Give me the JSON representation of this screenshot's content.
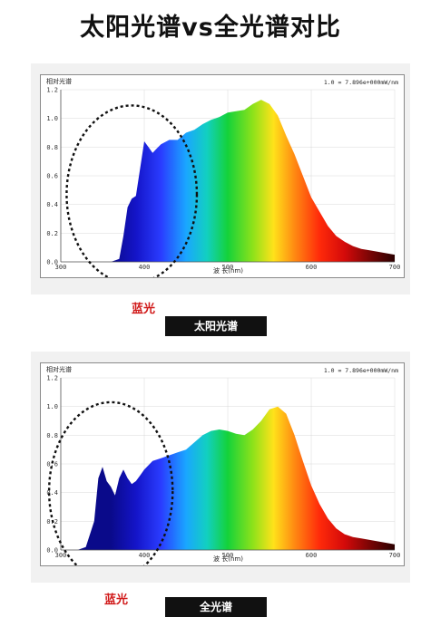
{
  "title": "太阳光谱vs全光谱对比",
  "colors": {
    "highlight_text": "#d01818",
    "caption_bg": "#111111",
    "circle": "#111111"
  },
  "chart_data": [
    {
      "type": "area",
      "caption": "太阳光谱",
      "callout": "蓝光",
      "ylabel": "相对光谱",
      "xlabel": "波 长(nm)",
      "scale_note": "1.0 = 7.896e+000mW/nm",
      "xlim": [
        300,
        700
      ],
      "ylim": [
        0,
        1.2
      ],
      "x_ticks": [
        "300",
        "400",
        "500",
        "600",
        "700"
      ],
      "y_ticks": [
        "0.0",
        "0.2",
        "0.4",
        "0.6",
        "0.8",
        "1.0",
        "1.2"
      ],
      "x": [
        300,
        360,
        370,
        375,
        380,
        385,
        390,
        395,
        400,
        405,
        410,
        415,
        420,
        430,
        440,
        450,
        460,
        470,
        480,
        490,
        500,
        510,
        520,
        530,
        540,
        550,
        560,
        570,
        580,
        590,
        600,
        610,
        620,
        630,
        640,
        650,
        660,
        670,
        680,
        690,
        700
      ],
      "values": [
        0.0,
        0.0,
        0.02,
        0.18,
        0.38,
        0.44,
        0.46,
        0.65,
        0.84,
        0.8,
        0.76,
        0.79,
        0.82,
        0.85,
        0.85,
        0.9,
        0.92,
        0.96,
        0.99,
        1.01,
        1.04,
        1.05,
        1.06,
        1.1,
        1.13,
        1.1,
        1.02,
        0.88,
        0.75,
        0.6,
        0.45,
        0.35,
        0.25,
        0.18,
        0.14,
        0.11,
        0.09,
        0.08,
        0.07,
        0.06,
        0.05
      ],
      "circle_center": [
        385,
        0.47
      ],
      "circle_radius": [
        78,
        0.62
      ]
    },
    {
      "type": "area",
      "caption": "全光谱",
      "callout": "蓝光",
      "ylabel": "相对光谱",
      "xlabel": "波 长(nm)",
      "scale_note": "1.0 = 7.896e+000mW/nm",
      "xlim": [
        300,
        700
      ],
      "ylim": [
        0,
        1.2
      ],
      "x_ticks": [
        "300",
        "400",
        "500",
        "600",
        "700"
      ],
      "y_ticks": [
        "0.0",
        "0.2",
        "0.4",
        "0.6",
        "0.8",
        "1.0",
        "1.2"
      ],
      "x": [
        300,
        320,
        330,
        340,
        345,
        350,
        355,
        360,
        365,
        370,
        375,
        380,
        385,
        390,
        395,
        400,
        410,
        420,
        430,
        440,
        450,
        460,
        470,
        480,
        490,
        500,
        510,
        520,
        530,
        540,
        550,
        560,
        570,
        580,
        590,
        600,
        610,
        620,
        630,
        640,
        650,
        660,
        670,
        680,
        690,
        700
      ],
      "values": [
        0.0,
        0.0,
        0.02,
        0.2,
        0.5,
        0.58,
        0.48,
        0.44,
        0.38,
        0.5,
        0.56,
        0.5,
        0.46,
        0.48,
        0.52,
        0.56,
        0.62,
        0.64,
        0.66,
        0.68,
        0.7,
        0.75,
        0.8,
        0.83,
        0.84,
        0.83,
        0.81,
        0.8,
        0.84,
        0.9,
        0.98,
        1.0,
        0.95,
        0.8,
        0.62,
        0.45,
        0.32,
        0.22,
        0.15,
        0.11,
        0.09,
        0.08,
        0.07,
        0.06,
        0.05,
        0.04
      ],
      "circle_center": [
        360,
        0.41
      ],
      "circle_radius": [
        74,
        0.62
      ]
    }
  ]
}
